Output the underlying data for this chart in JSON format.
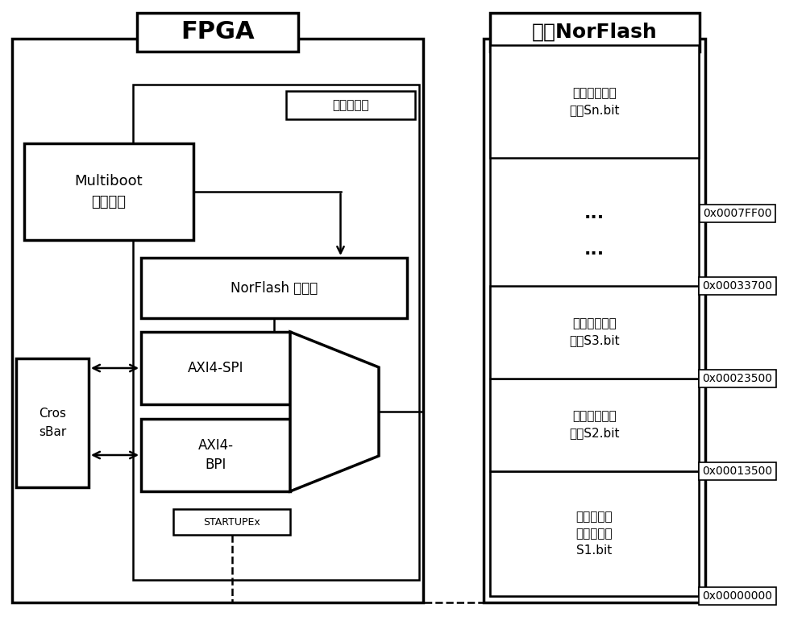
{
  "bg_color": "#ffffff",
  "line_color": "#000000",
  "title_fpga": "FPGA",
  "title_norflash": "片外NorFlash",
  "label_static": "静态逻辑区",
  "label_multiboot": "Multiboot\n判断模块",
  "label_norflash_ctrl": "NorFlash 控制器",
  "label_axi4spi": "AXI4-SPI",
  "label_axi4bpi": "AXI4-\nBPI",
  "label_startup": "STARTUPEx",
  "label_crossbar": "Cros\nsBar",
  "label_sn": "裁剪后比特流\n文件Sn.bit",
  "label_s3": "裁剪后比特流\n文件S3.bit",
  "label_s2": "裁剪后比特流\n文件S2.bit",
  "label_s1": "上电初始化\n比特流文件\nS1.bit",
  "addr_0007FF00": "0x0007FF00",
  "addr_00033700": "0x00033700",
  "addr_00023500": "0x00023500",
  "addr_00013500": "0x00013500",
  "addr_00000000": "0x00000000",
  "dots": "..."
}
